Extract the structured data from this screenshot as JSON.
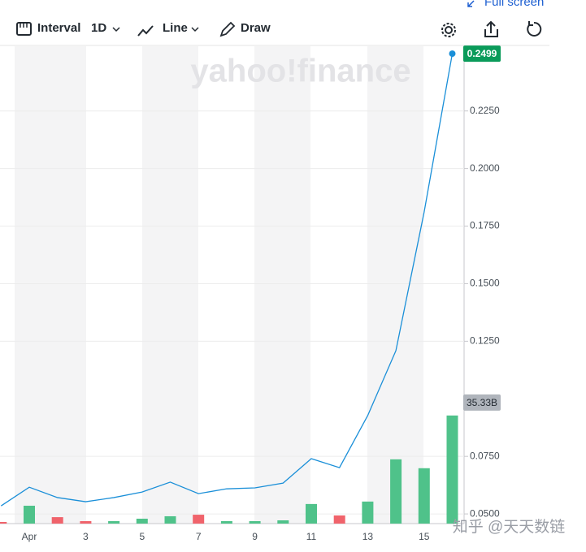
{
  "toolbar": {
    "interval_label": "Interval",
    "interval": "1D",
    "chart_type": "Line",
    "draw": "Draw",
    "full_screen": "Full screen"
  },
  "watermark": "yahoo!finance",
  "credit": "知乎 @天天数链",
  "chart_data": {
    "type": "line",
    "categories": [
      null,
      "Apr",
      null,
      "3",
      null,
      "5",
      null,
      "7",
      null,
      "9",
      null,
      "11",
      null,
      "13",
      null,
      "15",
      null
    ],
    "values": [
      0.0535,
      0.0616,
      0.0571,
      0.0553,
      0.0571,
      0.0595,
      0.0638,
      0.0588,
      0.0609,
      0.0613,
      0.0634,
      0.074,
      0.0701,
      0.0927,
      0.1209,
      0.181,
      0.2499
    ],
    "color": "#1a8fd8",
    "ylim": [
      0.0458,
      0.2531
    ],
    "yticks": [
      {
        "value": 0.05,
        "label": "0.0500"
      },
      {
        "value": 0.075,
        "label": "0.0750"
      },
      {
        "value": 0.125,
        "label": "0.1250"
      },
      {
        "value": 0.15,
        "label": "0.1500"
      },
      {
        "value": 0.175,
        "label": "0.1750"
      },
      {
        "value": 0.2,
        "label": "0.2000"
      },
      {
        "value": 0.225,
        "label": "0.2250"
      }
    ],
    "grid": true,
    "volume": {
      "values": [
        0.53,
        5.84,
        2.1,
        0.8,
        0.8,
        1.6,
        2.4,
        2.9,
        0.8,
        0.8,
        1.06,
        6.4,
        2.66,
        7.2,
        21.0,
        18.1,
        35.33
      ],
      "value_labels": [
        null,
        null,
        null,
        null,
        null,
        null,
        null,
        null,
        null,
        null,
        null,
        null,
        null,
        null,
        null,
        null,
        "35.33B"
      ],
      "colors": [
        "#f0636b",
        "#4fc28a",
        "#f0636b",
        "#f0636b",
        "#4fc28a",
        "#4fc28a",
        "#4fc28a",
        "#f0636b",
        "#4fc28a",
        "#4fc28a",
        "#4fc28a",
        "#4fc28a",
        "#f0636b",
        "#4fc28a",
        "#4fc28a",
        "#4fc28a",
        "#4fc28a"
      ],
      "ylim": [
        0,
        156
      ]
    }
  }
}
